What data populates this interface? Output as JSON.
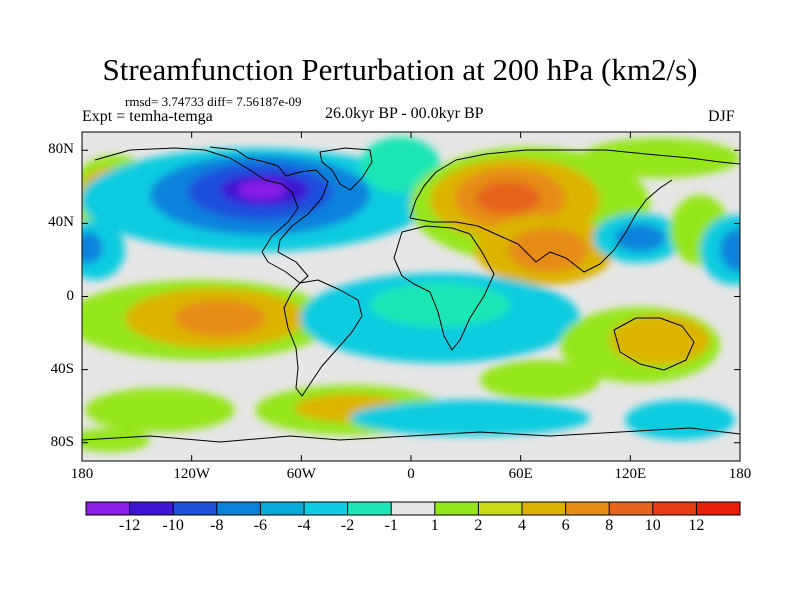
{
  "title": "Streamfunction Perturbation at 200 hPa (km2/s)",
  "stats_line": "rmsd= 3.74733  diff= 7.56187e-09",
  "experiment": "Expt = temha-temga",
  "period": "26.0kyr BP - 00.0kyr BP",
  "season": "DJF",
  "map": {
    "projection": "cylindrical-equidistant",
    "lat_range": [
      -90,
      90
    ],
    "lon_range": [
      -180,
      180
    ],
    "y_tick_labels": [
      "80N",
      "40N",
      "0",
      "40S",
      "80S"
    ],
    "x_tick_labels": [
      "180",
      "120W",
      "60W",
      "0",
      "60E",
      "120E",
      "180"
    ]
  },
  "colorbar": {
    "labels": [
      "-12",
      "-10",
      "-8",
      "-6",
      "-4",
      "-2",
      "-1",
      "1",
      "2",
      "4",
      "6",
      "8",
      "10",
      "12"
    ],
    "colors": [
      "#8a1ee6",
      "#3c14d2",
      "#1e50dc",
      "#0a82dc",
      "#08aadc",
      "#10cce0",
      "#1ee6b4",
      "#e6e6e6",
      "#96e61e",
      "#c8dc14",
      "#dcb400",
      "#e68c14",
      "#e6641e",
      "#e63c14",
      "#e61e0a"
    ]
  }
}
